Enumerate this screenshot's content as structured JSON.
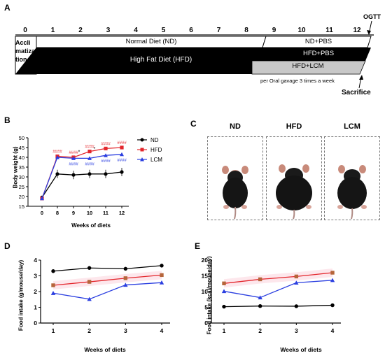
{
  "panels": {
    "A": {
      "label": "A",
      "week_ticks": [
        "0",
        "1",
        "2",
        "3",
        "4",
        "5",
        "6",
        "7",
        "8",
        "9",
        "10",
        "11",
        "12"
      ],
      "ogtt": "OGTT",
      "accli_lines": [
        "Accli",
        "matiza",
        "tion"
      ],
      "nd_bar": "Normal Diet (ND)",
      "nd_pbs": "ND+PBS",
      "hfd_bar": "High Fat Diet (HFD)",
      "hfd_pbs": "HFD+PBS",
      "hfd_lcm": "HFD+LCM",
      "gavage_note": "per Oral gavage 3 times a week",
      "sacrifice": "Sacrifice"
    },
    "B": {
      "label": "B",
      "ylabel": "Body weight (g)",
      "xlabel": "Weeks of diets",
      "legend": [
        "ND",
        "HFD",
        "LCM"
      ],
      "sig_hfd": "####",
      "sig_lcm": "####",
      "star": "*"
    },
    "C": {
      "label": "C",
      "groups": [
        "ND",
        "HFD",
        "LCM"
      ]
    },
    "D": {
      "label": "D",
      "ylabel": "Food intake (g/mouse/day)",
      "xlabel": "Weeks of diets"
    },
    "E": {
      "label": "E",
      "ylabel": "Food intake (kcal/mouse/day)",
      "xlabel": "Weeks of diets"
    }
  },
  "colors": {
    "nd": "#000000",
    "hfd": "#e3262c",
    "lcm": "#2b3fe0",
    "hfd_food": "#b5653a",
    "grey_bar": "#c8c8c8"
  },
  "chart_data": [
    {
      "panel": "B",
      "type": "line",
      "x": [
        0,
        8,
        9,
        10,
        11,
        12
      ],
      "ylim": [
        15,
        50
      ],
      "yticks": [
        15,
        20,
        25,
        30,
        35,
        40,
        45,
        50
      ],
      "series": [
        {
          "name": "ND",
          "values": [
            19.5,
            31.5,
            31,
            31.5,
            31.5,
            32.5
          ]
        },
        {
          "name": "HFD",
          "values": [
            19,
            40.5,
            40,
            43,
            44.5,
            45
          ]
        },
        {
          "name": "LCM",
          "values": [
            19,
            40,
            39.5,
            39.5,
            41,
            41.5
          ]
        }
      ]
    },
    {
      "panel": "D",
      "type": "line",
      "x": [
        1,
        2,
        3,
        4
      ],
      "ylim": [
        0,
        4
      ],
      "yticks": [
        0,
        1,
        2,
        3,
        4
      ],
      "series": [
        {
          "values": [
            3.3,
            3.5,
            3.45,
            3.65
          ]
        },
        {
          "values": [
            2.4,
            2.62,
            2.85,
            3.05
          ]
        },
        {
          "values": [
            1.9,
            1.52,
            2.42,
            2.57
          ]
        }
      ]
    },
    {
      "panel": "E",
      "type": "line",
      "x": [
        1,
        2,
        3,
        4
      ],
      "ylim": [
        0,
        20
      ],
      "yticks": [
        0,
        5,
        10,
        15,
        20
      ],
      "series": [
        {
          "values": [
            5.2,
            5.4,
            5.35,
            5.65
          ]
        },
        {
          "values": [
            12.6,
            13.9,
            14.8,
            16.0
          ]
        },
        {
          "values": [
            10.1,
            8.1,
            12.8,
            13.6
          ]
        }
      ]
    }
  ]
}
